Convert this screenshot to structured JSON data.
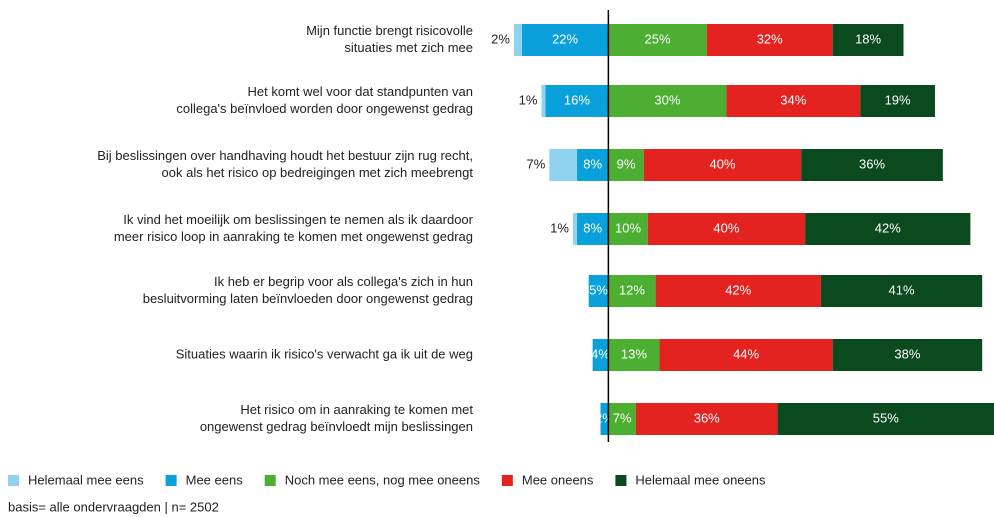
{
  "chart_data": {
    "type": "diverging-stacked-bar",
    "categories": [
      [
        "Mijn functie brengt risicovolle",
        "situaties met zich mee"
      ],
      [
        "Het komt wel voor dat standpunten van",
        "collega's beïnvloed worden door ongewenst gedrag"
      ],
      [
        "Bij beslissingen over handhaving houdt het bestuur zijn rug recht,",
        "ook als het risico op bedreigingen met zich meebrengt"
      ],
      [
        "Ik vind het moeilijk om beslissingen te nemen als ik daardoor",
        "meer risico loop in aanraking te komen met ongewenst gedrag"
      ],
      [
        "Ik heb er begrip voor als collega's zich in hun",
        "besluitvorming laten beïnvloeden door ongewenst gedrag"
      ],
      [
        "Situaties waarin ik risico's verwacht ga ik uit de weg"
      ],
      [
        "Het risico om in aanraking te komen met",
        "ongewenst gedrag beïnvloedt mijn beslissingen"
      ]
    ],
    "series": [
      {
        "name": "Helemaal mee eens",
        "color": "#8fd3f0",
        "side": "left",
        "values": [
          2,
          1,
          7,
          1,
          0,
          0,
          0
        ],
        "value_labels": [
          "2%",
          "1%",
          "7%",
          "1%",
          null,
          null,
          null
        ]
      },
      {
        "name": "Mee eens",
        "color": "#0aa0dc",
        "side": "left",
        "values": [
          22,
          16,
          8,
          8,
          5,
          4,
          2
        ],
        "value_labels": [
          "22%",
          "16%",
          "8%",
          "8%",
          "5%",
          "4%",
          "2%"
        ]
      },
      {
        "name": "Noch mee eens, nog mee oneens",
        "color": "#4caf32",
        "side": "right",
        "values": [
          25,
          30,
          9,
          10,
          12,
          13,
          7
        ],
        "value_labels": [
          "25%",
          "30%",
          "9%",
          "10%",
          "12%",
          "13%",
          "7%"
        ]
      },
      {
        "name": "Mee oneens",
        "color": "#e42320",
        "side": "right",
        "values": [
          32,
          34,
          40,
          40,
          42,
          44,
          36
        ],
        "value_labels": [
          "32%",
          "34%",
          "40%",
          "40%",
          "42%",
          "44%",
          "36%"
        ]
      },
      {
        "name": "Helemaal mee oneens",
        "color": "#0b4a1e",
        "side": "right",
        "values": [
          18,
          19,
          36,
          42,
          41,
          38,
          55
        ],
        "value_labels": [
          "18%",
          "19%",
          "36%",
          "42%",
          "41%",
          "38%",
          "55%"
        ]
      }
    ],
    "xlim": [
      -25,
      98
    ],
    "footnote": "basis= alle ondervraagden | n= 2502"
  }
}
